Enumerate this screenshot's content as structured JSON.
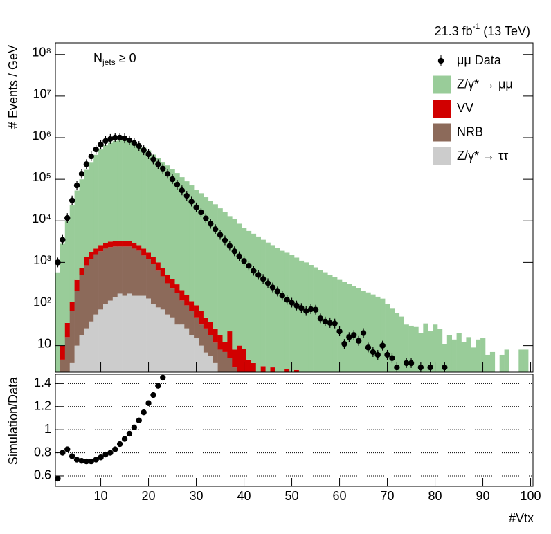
{
  "chart_data": [
    {
      "type": "bar",
      "lumi": [
        "21.3 fb",
        "-1",
        " (13 TeV)"
      ],
      "annotation": [
        "N",
        "jets",
        " ≥ 0"
      ],
      "y_label": "# Events / GeV",
      "log_scale": true,
      "legend": "top-right",
      "ylim": [
        2.3,
        190000000
      ],
      "yticks": [
        10,
        {
          "value": 100,
          "label": "10²"
        },
        {
          "value": 1000,
          "label": "10³"
        },
        {
          "value": 10000,
          "label": "10⁴"
        },
        {
          "value": 100000,
          "label": "10⁵"
        },
        {
          "value": 1000000,
          "label": "10⁶"
        },
        {
          "value": 10000000,
          "label": "10⁷"
        },
        {
          "value": 100000000,
          "label": "10⁸"
        }
      ],
      "x": [
        1,
        2,
        3,
        4,
        5,
        6,
        7,
        8,
        9,
        10,
        11,
        12,
        13,
        14,
        15,
        16,
        17,
        18,
        19,
        20,
        21,
        22,
        23,
        24,
        25,
        26,
        27,
        28,
        29,
        30,
        31,
        32,
        33,
        34,
        35,
        36,
        37,
        38,
        39,
        40,
        41,
        42,
        43,
        44,
        45,
        46,
        47,
        48,
        49,
        50,
        51,
        52,
        53,
        54,
        55,
        56,
        57,
        58,
        59,
        60,
        61,
        62,
        63,
        64,
        65,
        66,
        67,
        68,
        69,
        70,
        71,
        72,
        73,
        74,
        75,
        76,
        77,
        78,
        79,
        80,
        81,
        82,
        83,
        84,
        85,
        86,
        87,
        88,
        89,
        90,
        91,
        92,
        93,
        94,
        95,
        96,
        97,
        98,
        99,
        100
      ],
      "data": {
        "name": "μμ Data",
        "color": "#000000",
        "values": [
          1000,
          3500,
          11700,
          31000,
          71000,
          135000,
          230000,
          355000,
          520000,
          680000,
          830000,
          930000,
          1000000,
          1000000,
          960000,
          860000,
          740000,
          630000,
          500000,
          400000,
          300000,
          230000,
          180000,
          135000,
          100000,
          74000,
          54000,
          40000,
          29000,
          21000,
          16000,
          11500,
          8500,
          6300,
          4600,
          3400,
          2500,
          1850,
          1400,
          1080,
          830,
          630,
          500,
          400,
          316,
          250,
          200,
          160,
          126,
          108,
          92,
          80,
          68,
          75,
          73,
          45,
          38,
          35,
          34,
          22,
          11,
          16,
          18,
          13,
          20,
          9,
          7,
          6,
          10,
          6,
          5,
          3,
          null,
          3.8,
          3.8,
          null,
          3,
          null,
          3,
          null,
          null,
          3,
          null,
          null,
          null,
          null,
          null,
          null,
          null,
          null,
          null,
          null,
          null,
          null,
          null,
          null,
          null,
          null,
          null,
          null
        ]
      },
      "series": [
        {
          "name": "Z/γ* → μμ",
          "color": "#99cc99",
          "values": [
            576,
            2800,
            9700,
            24000,
            53000,
            99000,
            167000,
            257000,
            385000,
            517000,
            650000,
            744000,
            830000,
            875000,
            880000,
            830000,
            755000,
            680000,
            575000,
            490000,
            390000,
            317000,
            260000,
            214000,
            174000,
            141000,
            112000,
            89000,
            71000,
            56000,
            46000,
            37000,
            30000,
            25000,
            20000,
            16000,
            13000,
            11000,
            8500,
            6800,
            5700,
            4900,
            4200,
            3500,
            3000,
            2600,
            2200,
            1900,
            1700,
            1500,
            1300,
            1100,
            1000,
            870,
            760,
            660,
            580,
            500,
            440,
            380,
            340,
            300,
            270,
            240,
            210,
            190,
            170,
            150,
            135,
            100,
            80,
            60,
            50,
            32,
            30,
            28,
            20,
            34,
            22,
            32,
            25,
            11,
            18,
            14,
            20,
            12,
            16,
            9,
            14,
            15,
            6,
            7,
            null,
            6,
            8,
            null,
            null,
            8,
            8,
            null
          ]
        },
        {
          "name": "VV",
          "color": "#d10000",
          "values": [
            null,
            5.4,
            19,
            44,
            168,
            236,
            500,
            570,
            570,
            760,
            780,
            830,
            870,
            870,
            870,
            870,
            780,
            690,
            680,
            500,
            430,
            370,
            270,
            184,
            165,
            115,
            94,
            72,
            49,
            47,
            36,
            20,
            20,
            14,
            10,
            5,
            17,
            5,
            10,
            8.3,
            4.6,
            3.8,
            null,
            3.2,
            null,
            3,
            null,
            null,
            2.7,
            null,
            2.6,
            null,
            null,
            null,
            null,
            null,
            null,
            null,
            null,
            null,
            null,
            null,
            null,
            null,
            null,
            null,
            null,
            null,
            null,
            null,
            null,
            null,
            null,
            null,
            null,
            null,
            null,
            null,
            null,
            null,
            null,
            null,
            null,
            null,
            null,
            null,
            null,
            null,
            null,
            null,
            null,
            null,
            null,
            null,
            null,
            null,
            null,
            null,
            null,
            null
          ]
        },
        {
          "name": "NRB",
          "color": "#8c6a5a",
          "values": [
            null,
            4.6,
            16,
            64,
            200,
            480,
            830,
            1170,
            1520,
            1780,
            2050,
            2210,
            2270,
            2240,
            2260,
            2240,
            1990,
            1760,
            1310,
            1070,
            830,
            550,
            390,
            260,
            190,
            150,
            90,
            67,
            50,
            31,
            22,
            19,
            12,
            8,
            8,
            7,
            5,
            3,
            null,
            null,
            null,
            null,
            null,
            null,
            null,
            null,
            null,
            null,
            null,
            null,
            null,
            null,
            null,
            null,
            null,
            null,
            null,
            null,
            null,
            null,
            null,
            null,
            null,
            null,
            null,
            null,
            null,
            null,
            null,
            null,
            null,
            null,
            null,
            null,
            null,
            null,
            null,
            null,
            null,
            null,
            null,
            null,
            null,
            null,
            null,
            null,
            null,
            null,
            null,
            null,
            null,
            null,
            null,
            null,
            null,
            null,
            null,
            null,
            null,
            null
          ]
        },
        {
          "name": "Z/γ* → ττ",
          "color": "#cccccc",
          "values": [
            null,
            null,
            null,
            3.8,
            10,
            18,
            26,
            38,
            56,
            74,
            100,
            121,
            147,
            178,
            158,
            178,
            158,
            158,
            158,
            136,
            100,
            83,
            74,
            56,
            46,
            32,
            32,
            26,
            18,
            15,
            10,
            6.8,
            5.6,
            3.8,
            null,
            null,
            null,
            null,
            null,
            null,
            null,
            null,
            null,
            null,
            null,
            null,
            null,
            null,
            null,
            null,
            null,
            null,
            null,
            null,
            null,
            null,
            null,
            null,
            null,
            null,
            null,
            null,
            null,
            null,
            null,
            null,
            null,
            null,
            null,
            null,
            null,
            null,
            null,
            null,
            null,
            null,
            null,
            null,
            null,
            null,
            null,
            null,
            null,
            null,
            null,
            null,
            null,
            null,
            null,
            null,
            null,
            null,
            null,
            null,
            null,
            null,
            null,
            null,
            null,
            null
          ]
        }
      ]
    },
    {
      "type": "scatter",
      "y_label": "Simulation/Data",
      "x_label": "#Vtx",
      "color": "#000000",
      "grid": true,
      "xlim": [
        0.5,
        100.5
      ],
      "xticks": [
        10,
        20,
        30,
        40,
        50,
        60,
        70,
        80,
        90,
        100
      ],
      "ylim": [
        0.51,
        1.48
      ],
      "yticks": [
        0.6,
        0.8,
        1,
        1.2,
        1.4
      ],
      "x": [
        1,
        2,
        3,
        4,
        5,
        6,
        7,
        8,
        9,
        10,
        11,
        12,
        13,
        14,
        15,
        16,
        17,
        18,
        19,
        20,
        21,
        22,
        23
      ],
      "values": [
        0.576,
        0.8,
        0.83,
        0.77,
        0.74,
        0.73,
        0.725,
        0.725,
        0.74,
        0.76,
        0.785,
        0.8,
        0.83,
        0.875,
        0.92,
        0.965,
        1.02,
        1.08,
        1.15,
        1.23,
        1.3,
        1.38,
        1.45
      ]
    }
  ]
}
